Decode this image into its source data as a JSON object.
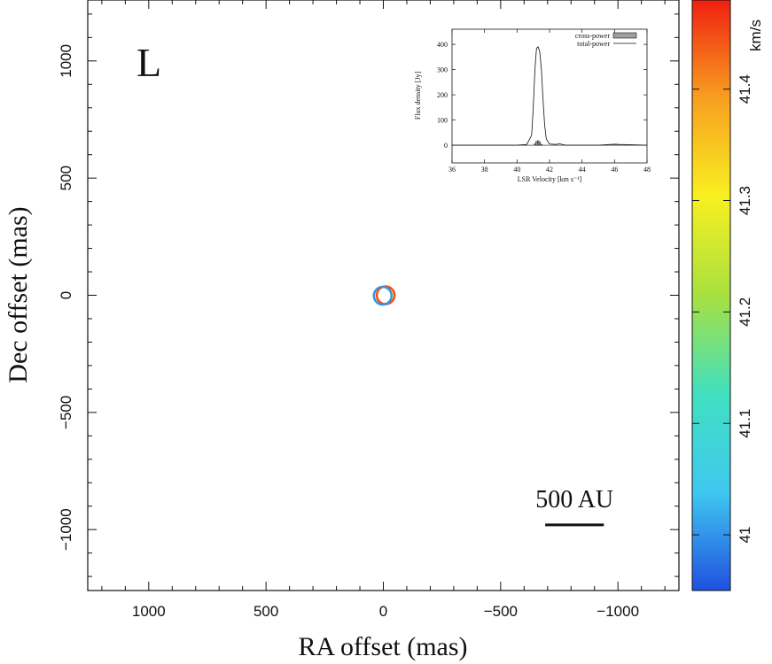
{
  "chart_data": [
    {
      "type": "scatter",
      "panel_label": "L",
      "xlabel": "RA offset (mas)",
      "ylabel": "Dec offset (mas)",
      "xlim": [
        1260,
        -1260
      ],
      "ylim": [
        -1260,
        1260
      ],
      "x_ticks": [
        1000,
        500,
        0,
        -500,
        -1000
      ],
      "y_ticks": [
        1000,
        500,
        0,
        -500,
        -1000
      ],
      "x_tick_labels": [
        "1000",
        "500",
        "0",
        "−500",
        "−1000"
      ],
      "y_tick_labels": [
        "1000",
        "500",
        "0",
        "−500",
        "−1000"
      ],
      "marker": "open-circle",
      "points": [
        {
          "x": 0,
          "y": 0,
          "velocity": 41.32
        },
        {
          "x": -10,
          "y": 0,
          "velocity": 41.45
        },
        {
          "x": 3,
          "y": -2,
          "velocity": 41.0
        }
      ],
      "scale_bar": {
        "label": "500 AU",
        "length_mas": 250,
        "x_from": -690,
        "x_to": -940,
        "y": -980
      },
      "colorbar": {
        "label": "km/s",
        "range": [
          40.95,
          41.48
        ],
        "ticks": [
          41,
          41.1,
          41.2,
          41.3,
          41.4
        ],
        "tick_labels": [
          "41",
          "41.1",
          "41.2",
          "41.3",
          "41.4"
        ],
        "colors": [
          "#2050e0",
          "#40c8f0",
          "#40e0c0",
          "#a8e040",
          "#f8f020",
          "#f8a020",
          "#f02010"
        ]
      }
    },
    {
      "type": "line",
      "xlabel": "LSR Velocity [km s⁻¹]",
      "ylabel": "Flux density [Jy]",
      "xlim": [
        36,
        48
      ],
      "ylim": [
        -70,
        460
      ],
      "x_ticks": [
        36,
        38,
        40,
        42,
        44,
        46,
        48
      ],
      "y_ticks": [
        0,
        100,
        200,
        300,
        400
      ],
      "legend_position": "top-right",
      "series": [
        {
          "name": "total-power",
          "style": "line",
          "x": [
            36,
            40,
            40.6,
            40.9,
            41.0,
            41.1,
            41.2,
            41.3,
            41.4,
            41.5,
            41.6,
            41.7,
            41.8,
            42.0,
            42.4,
            42.6,
            43.0,
            45.0,
            46.0,
            46.3,
            48
          ],
          "y": [
            0,
            0,
            3,
            40,
            150,
            300,
            385,
            390,
            370,
            300,
            180,
            80,
            25,
            5,
            3,
            6,
            0,
            0,
            4,
            3,
            0
          ]
        },
        {
          "name": "cross-power",
          "style": "bar",
          "x": [
            41.1,
            41.2,
            41.3,
            41.4,
            41.5
          ],
          "y": [
            5,
            15,
            18,
            12,
            3
          ]
        }
      ]
    }
  ]
}
